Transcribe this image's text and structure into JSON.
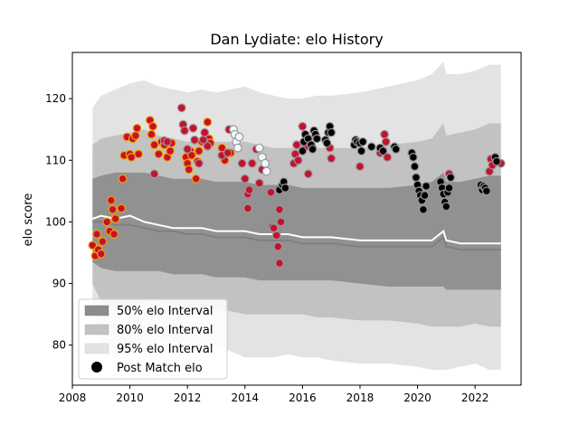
{
  "chart_data": {
    "type": "scatter",
    "title": "Dan Lydiate: elo History",
    "xlabel": "",
    "ylabel": "elo score",
    "xlim": [
      2008.0,
      2023.6
    ],
    "ylim": [
      73.5,
      127.5
    ],
    "xticks": [
      2008,
      2010,
      2012,
      2014,
      2016,
      2018,
      2020,
      2022
    ],
    "yticks": [
      80,
      90,
      100,
      110,
      120
    ],
    "legend": {
      "position": "lower-left",
      "entries": [
        "50% elo Interval",
        "80% elo Interval",
        "95% elo Interval",
        "Post Match elo"
      ]
    },
    "colors": {
      "band50": "#8c8c8c",
      "band80": "#c2c2c2",
      "band95": "#e3e3e3",
      "median_line": "#808080",
      "mean_line": "#ffffff",
      "wales_fill": "#c8102e",
      "wales_edge": "#f0a500",
      "lions_edge": "#999999",
      "ospreys_fill": "#000000",
      "dragons_fill": "#f0f8ff"
    },
    "bands": {
      "x": [
        2008.7,
        2009.0,
        2009.5,
        2010.0,
        2010.5,
        2011.0,
        2011.5,
        2012.0,
        2012.5,
        2013.0,
        2013.5,
        2014.0,
        2014.5,
        2015.0,
        2015.5,
        2016.0,
        2016.5,
        2017.0,
        2018.0,
        2019.0,
        2020.0,
        2020.5,
        2020.9,
        2021.0,
        2021.5,
        2022.0,
        2022.5,
        2022.9
      ],
      "p95_hi": [
        118.5,
        120.5,
        121.5,
        122.5,
        123,
        122,
        121.5,
        121,
        121.5,
        121,
        121.5,
        122,
        121,
        120.5,
        120,
        120,
        120.5,
        120.5,
        121,
        122,
        123,
        124,
        126,
        124,
        124,
        124.5,
        125.5,
        125.5
      ],
      "p95_lo": [
        86,
        80,
        78,
        79,
        80,
        81,
        80.5,
        80,
        79.5,
        80,
        79,
        78,
        78,
        78,
        78.5,
        78,
        78,
        77.5,
        77,
        77,
        76.5,
        76,
        76,
        76,
        76.5,
        77,
        76,
        76
      ],
      "p80_hi": [
        112.5,
        113.5,
        114,
        114.5,
        115,
        114,
        113.5,
        113,
        113,
        113,
        113,
        113,
        112.5,
        112,
        112,
        112,
        112,
        112,
        112,
        112.5,
        113,
        113.5,
        116,
        114,
        114.5,
        115,
        116,
        116
      ],
      "p80_lo": [
        90,
        87,
        86,
        86,
        87,
        87,
        86.5,
        86,
        86,
        86,
        85.5,
        85,
        85,
        85,
        85,
        85,
        84.5,
        84.5,
        84,
        84,
        83.5,
        83,
        83,
        83,
        83,
        83.5,
        83,
        83
      ],
      "p50_hi": [
        107,
        107.5,
        108,
        108,
        108,
        107.5,
        107,
        107,
        107,
        106.5,
        106.5,
        106.5,
        106,
        106,
        106,
        105.5,
        105.5,
        105.5,
        105.5,
        105.5,
        106,
        106.5,
        108,
        106.5,
        106.5,
        107,
        107.5,
        107.5
      ],
      "p50_lo": [
        93.5,
        92.5,
        92,
        92,
        92,
        92,
        91.5,
        91.5,
        91.5,
        91,
        91,
        91,
        90.5,
        90.5,
        90.5,
        90.5,
        90.5,
        90.5,
        90,
        89.5,
        89.5,
        89.5,
        89.5,
        89,
        89,
        89,
        89,
        89
      ],
      "median": [
        100,
        100,
        99.5,
        99.5,
        99,
        98.5,
        98.5,
        98,
        98,
        97.5,
        97.5,
        97.5,
        97,
        97,
        97,
        96.5,
        96.5,
        96.5,
        96,
        96,
        96,
        96,
        97.5,
        96,
        95.5,
        95.5,
        95.5,
        95.5
      ],
      "mean": [
        100.5,
        101,
        100.5,
        101,
        100,
        99.5,
        99,
        99,
        99,
        98.5,
        98.5,
        98.5,
        98,
        98,
        98,
        97.5,
        97.5,
        97.5,
        97,
        97,
        97,
        97,
        98.5,
        97,
        96.5,
        96.5,
        96.5,
        96.5
      ]
    },
    "series": [
      {
        "fill": "#c8102e",
        "edge": "#f0a500",
        "points": [
          [
            2008.7,
            96.2
          ],
          [
            2008.8,
            94.5
          ],
          [
            2008.85,
            98
          ],
          [
            2008.9,
            95.5
          ],
          [
            2009.0,
            94.8
          ],
          [
            2009.05,
            96.8
          ],
          [
            2009.2,
            100
          ],
          [
            2009.3,
            98.5
          ],
          [
            2009.35,
            103.5
          ],
          [
            2009.4,
            102
          ],
          [
            2009.45,
            98
          ],
          [
            2009.5,
            100.5
          ],
          [
            2009.7,
            102.2
          ],
          [
            2009.75,
            107
          ],
          [
            2009.8,
            110.8
          ],
          [
            2009.9,
            113.8
          ],
          [
            2010.0,
            111
          ],
          [
            2010.05,
            110.5
          ],
          [
            2010.1,
            113.5
          ],
          [
            2010.2,
            114
          ],
          [
            2010.25,
            115.2
          ],
          [
            2010.3,
            111
          ],
          [
            2010.7,
            116.5
          ],
          [
            2010.75,
            114.2
          ],
          [
            2010.8,
            115.5
          ],
          [
            2010.85,
            112.5
          ],
          [
            2011.0,
            111
          ],
          [
            2011.1,
            113
          ],
          [
            2011.2,
            112.5
          ],
          [
            2011.3,
            110.5
          ],
          [
            2011.4,
            111.5
          ],
          [
            2011.45,
            112.8
          ],
          [
            2011.95,
            110.5
          ],
          [
            2012.0,
            109.5
          ],
          [
            2012.05,
            108.5
          ],
          [
            2012.1,
            111.5
          ],
          [
            2012.15,
            110.8
          ],
          [
            2012.3,
            107
          ],
          [
            2012.35,
            109.8
          ],
          [
            2012.4,
            111.5
          ],
          [
            2012.5,
            113
          ],
          [
            2012.6,
            114.5
          ],
          [
            2012.7,
            116.2
          ],
          [
            2012.75,
            113.5
          ],
          [
            2012.8,
            112.8
          ],
          [
            2013.2,
            112
          ],
          [
            2013.25,
            110.5
          ],
          [
            2013.3,
            110
          ],
          [
            2013.5,
            111.2
          ]
        ]
      },
      {
        "fill": "#c8102e",
        "edge": "#999999",
        "points": [
          [
            2010.85,
            107.8
          ],
          [
            2011.2,
            113.2
          ],
          [
            2011.3,
            113
          ],
          [
            2011.8,
            118.5
          ],
          [
            2011.85,
            115.8
          ],
          [
            2011.9,
            114.8
          ],
          [
            2012.0,
            111.8
          ],
          [
            2012.2,
            115.2
          ],
          [
            2012.25,
            113.3
          ],
          [
            2012.4,
            109.5
          ],
          [
            2012.55,
            113.3
          ],
          [
            2012.6,
            114.5
          ],
          [
            2012.7,
            112.3
          ],
          [
            2013.2,
            110.8
          ],
          [
            2013.4,
            111.2
          ],
          [
            2013.45,
            115
          ],
          [
            2013.9,
            109.5
          ],
          [
            2014.0,
            107
          ],
          [
            2014.1,
            104.5
          ],
          [
            2014.15,
            105.2
          ],
          [
            2014.1,
            102.2
          ],
          [
            2014.25,
            109.5
          ],
          [
            2014.4,
            111.8
          ],
          [
            2014.5,
            106.3
          ],
          [
            2014.6,
            108.5
          ],
          [
            2014.9,
            104.8
          ],
          [
            2014.95,
            99.2
          ],
          [
            2015.0,
            99
          ],
          [
            2015.1,
            97.8
          ],
          [
            2015.15,
            96
          ],
          [
            2015.2,
            93.3
          ],
          [
            2015.2,
            102
          ],
          [
            2015.25,
            100
          ],
          [
            2015.7,
            109.5
          ],
          [
            2015.75,
            111
          ],
          [
            2015.8,
            112.5
          ],
          [
            2015.85,
            110
          ],
          [
            2016.0,
            115.5
          ],
          [
            2016.1,
            112.2
          ],
          [
            2016.2,
            107.8
          ],
          [
            2016.35,
            112
          ],
          [
            2016.95,
            112
          ],
          [
            2017.0,
            110.3
          ],
          [
            2018.0,
            109
          ],
          [
            2018.7,
            111.2
          ],
          [
            2018.85,
            114.2
          ],
          [
            2018.9,
            113
          ],
          [
            2018.95,
            110.5
          ],
          [
            2021.1,
            107.8
          ],
          [
            2022.5,
            108.2
          ],
          [
            2022.55,
            110.2
          ],
          [
            2022.6,
            109.2
          ],
          [
            2022.9,
            109.5
          ]
        ]
      },
      {
        "fill": "#000000",
        "edge": "#999999",
        "points": [
          [
            2015.2,
            105.2
          ],
          [
            2015.3,
            106
          ],
          [
            2015.35,
            106.5
          ],
          [
            2015.4,
            105.5
          ],
          [
            2016.0,
            111.5
          ],
          [
            2016.05,
            113
          ],
          [
            2016.1,
            114.2
          ],
          [
            2016.2,
            113.5
          ],
          [
            2016.3,
            112.5
          ],
          [
            2016.35,
            111.8
          ],
          [
            2016.4,
            114.8
          ],
          [
            2016.45,
            114.2
          ],
          [
            2016.5,
            113.5
          ],
          [
            2016.8,
            113.3
          ],
          [
            2016.85,
            112.8
          ],
          [
            2016.9,
            114.5
          ],
          [
            2016.95,
            115.5
          ],
          [
            2017.0,
            114.5
          ],
          [
            2017.8,
            112.5
          ],
          [
            2017.85,
            113.3
          ],
          [
            2017.9,
            113
          ],
          [
            2018.0,
            112.8
          ],
          [
            2018.05,
            111.5
          ],
          [
            2018.1,
            113
          ],
          [
            2018.4,
            112.2
          ],
          [
            2018.7,
            112
          ],
          [
            2018.8,
            111.5
          ],
          [
            2019.2,
            112.2
          ],
          [
            2019.25,
            111.8
          ],
          [
            2019.8,
            111.2
          ],
          [
            2019.85,
            110.5
          ],
          [
            2019.9,
            109
          ],
          [
            2019.95,
            107.2
          ],
          [
            2020.0,
            106
          ],
          [
            2020.05,
            105
          ],
          [
            2020.1,
            104.3
          ],
          [
            2020.15,
            103.5
          ],
          [
            2020.2,
            102
          ],
          [
            2020.25,
            104.3
          ],
          [
            2020.3,
            105.8
          ],
          [
            2020.8,
            106.5
          ],
          [
            2020.85,
            105.5
          ],
          [
            2020.9,
            104.5
          ],
          [
            2020.95,
            103.2
          ],
          [
            2021.0,
            102.5
          ],
          [
            2021.05,
            104.8
          ],
          [
            2021.1,
            105.5
          ],
          [
            2021.15,
            107.2
          ],
          [
            2022.2,
            106
          ],
          [
            2022.25,
            105.2
          ],
          [
            2022.3,
            105.8
          ],
          [
            2022.35,
            105.5
          ],
          [
            2022.4,
            105
          ],
          [
            2022.7,
            110.5
          ],
          [
            2022.75,
            109.8
          ]
        ]
      },
      {
        "fill": "#f0f8ff",
        "edge": "#999999",
        "points": [
          [
            2013.6,
            115
          ],
          [
            2013.65,
            114.2
          ],
          [
            2013.7,
            113
          ],
          [
            2013.75,
            112
          ],
          [
            2013.8,
            113.8
          ],
          [
            2014.5,
            112
          ],
          [
            2014.6,
            110.5
          ],
          [
            2014.7,
            109.5
          ],
          [
            2014.75,
            108.2
          ]
        ]
      }
    ]
  }
}
